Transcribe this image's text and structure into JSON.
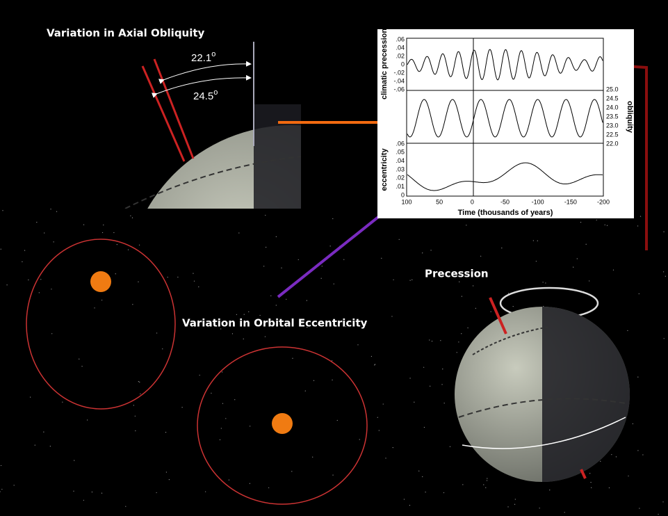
{
  "obliquity_panel": {
    "title": "Variation in Axial Obliquity",
    "angle_small": "22.1",
    "angle_large": "24.5",
    "degree_mark": "o"
  },
  "eccentricity_panel": {
    "title": "Variation in Orbital Eccentricity"
  },
  "precession_panel": {
    "title": "Precession"
  },
  "plot": {
    "precession_label": "climatic precession",
    "precession_ticks": [
      ".06",
      ".04",
      ".02",
      "0",
      "-.02",
      "-.04",
      "-.06"
    ],
    "obliquity_label": "obliquity",
    "obliquity_ticks": [
      "25.0",
      "24.5",
      "24.0",
      "23.5",
      "23.0",
      "22.5",
      "22.0"
    ],
    "eccentricity_label": "eccentricity",
    "eccentricity_ticks": [
      ".06",
      ".05",
      ".04",
      ".03",
      ".02",
      ".01",
      "0"
    ],
    "x_ticks": [
      "100",
      "50",
      "0",
      "-50",
      "-100",
      "-150",
      "-200"
    ],
    "x_label": "Time (thousands of years)"
  }
}
